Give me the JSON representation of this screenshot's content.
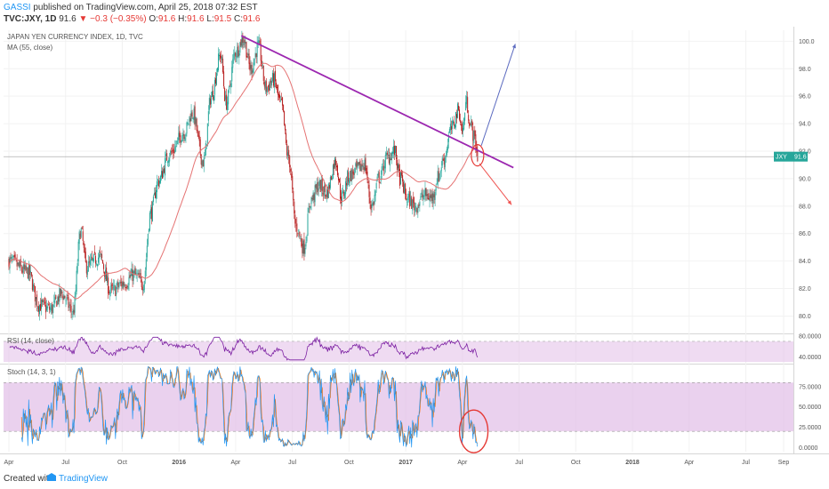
{
  "header": {
    "author": "GASSI",
    "published": "published on TradingView.com, April 25, 2018 07:32 EST",
    "symbol": "TVC:JXY, 1D",
    "last": "91.6",
    "change": "▼ −0.3 (−0.35%)",
    "ohlc": [
      {
        "k": "O:",
        "v": "91.6"
      },
      {
        "k": "H:",
        "v": "91.6"
      },
      {
        "k": "L:",
        "v": "91.5"
      },
      {
        "k": "C:",
        "v": "91.6"
      }
    ]
  },
  "footer": {
    "created": "Created with",
    "brand": "TradingView"
  },
  "colors": {
    "up": "#26a69a",
    "down": "#b71c1c",
    "ma": "#e57373",
    "trendline": "#9c27b0",
    "pointer_up": "#5c6bc0",
    "pointer_down": "#ef5350",
    "highlight": "#e53935",
    "rsi": "#7b1fa2",
    "stoch_k": "#2196f3",
    "stoch_d": "#ef6c00",
    "band": "#e1bee7"
  },
  "chart_data": [
    {
      "type": "candlestick",
      "title": "JAPAN YEN CURRENCY INDEX, 1D, TVC",
      "overlay": "MA (55, close)",
      "price_badge": {
        "label": "JXY",
        "value": "91.6"
      },
      "ylim": [
        78.8,
        100.8
      ],
      "yticks": [
        "100.0",
        "98.0",
        "96.0",
        "94.0",
        "92.0",
        "90.0",
        "88.0",
        "86.0",
        "84.0",
        "82.0",
        "80.0"
      ],
      "x_range_months": [
        0,
        30
      ],
      "last_bar_month": 24.8,
      "keypoints": [
        {
          "t": 0,
          "v": 84.0
        },
        {
          "t": 1,
          "v": 83.2
        },
        {
          "t": 1.6,
          "v": 80.8
        },
        {
          "t": 2.2,
          "v": 80.5
        },
        {
          "t": 2.8,
          "v": 81.6
        },
        {
          "t": 3.4,
          "v": 80.3
        },
        {
          "t": 3.8,
          "v": 86.2
        },
        {
          "t": 4.1,
          "v": 83.6
        },
        {
          "t": 4.8,
          "v": 84.3
        },
        {
          "t": 5.4,
          "v": 81.8
        },
        {
          "t": 6.1,
          "v": 82.4
        },
        {
          "t": 6.6,
          "v": 83.0
        },
        {
          "t": 7.1,
          "v": 82.4
        },
        {
          "t": 7.5,
          "v": 87.5
        },
        {
          "t": 7.9,
          "v": 89.8
        },
        {
          "t": 8.5,
          "v": 91.8
        },
        {
          "t": 9.3,
          "v": 93.4
        },
        {
          "t": 9.7,
          "v": 94.8
        },
        {
          "t": 10.3,
          "v": 91.2
        },
        {
          "t": 10.7,
          "v": 96.0
        },
        {
          "t": 11.2,
          "v": 99.0
        },
        {
          "t": 11.5,
          "v": 95.5
        },
        {
          "t": 12.0,
          "v": 99.2
        },
        {
          "t": 12.4,
          "v": 100.2
        },
        {
          "t": 12.8,
          "v": 98.0
        },
        {
          "t": 13.2,
          "v": 99.6
        },
        {
          "t": 13.6,
          "v": 96.6
        },
        {
          "t": 14.0,
          "v": 97.2
        },
        {
          "t": 14.4,
          "v": 95.4
        },
        {
          "t": 14.8,
          "v": 91.5
        },
        {
          "t": 15.2,
          "v": 86.5
        },
        {
          "t": 15.6,
          "v": 85.0
        },
        {
          "t": 16.0,
          "v": 88.5
        },
        {
          "t": 16.4,
          "v": 89.5
        },
        {
          "t": 16.8,
          "v": 89.0
        },
        {
          "t": 17.3,
          "v": 91.3
        },
        {
          "t": 17.6,
          "v": 88.6
        },
        {
          "t": 18.0,
          "v": 90.2
        },
        {
          "t": 18.4,
          "v": 90.6
        },
        {
          "t": 18.8,
          "v": 91.1
        },
        {
          "t": 19.2,
          "v": 88.0
        },
        {
          "t": 19.6,
          "v": 90.1
        },
        {
          "t": 20.0,
          "v": 91.5
        },
        {
          "t": 20.4,
          "v": 92.0
        },
        {
          "t": 20.7,
          "v": 90.0
        },
        {
          "t": 21.1,
          "v": 88.5
        },
        {
          "t": 21.5,
          "v": 88.0
        },
        {
          "t": 22.0,
          "v": 88.8
        },
        {
          "t": 22.4,
          "v": 88.6
        },
        {
          "t": 22.7,
          "v": 90.1
        },
        {
          "t": 23.0,
          "v": 91.4
        },
        {
          "t": 23.4,
          "v": 93.6
        },
        {
          "t": 23.8,
          "v": 95.0
        },
        {
          "t": 24.0,
          "v": 93.4
        },
        {
          "t": 24.2,
          "v": 95.6
        },
        {
          "t": 24.45,
          "v": 93.8
        },
        {
          "t": 24.65,
          "v": 92.9
        },
        {
          "t": 24.8,
          "v": 91.6
        }
      ],
      "trendline": [
        {
          "t": 12.3,
          "v": 100.4
        },
        {
          "t": 26.7,
          "v": 90.8
        }
      ],
      "projection_up": [
        {
          "t": 25.0,
          "v": 92.4
        },
        {
          "t": 26.8,
          "v": 99.8
        }
      ],
      "projection_down": [
        {
          "t": 24.9,
          "v": 91.1
        },
        {
          "t": 26.6,
          "v": 88.1
        }
      ],
      "highlight": {
        "t": 24.8,
        "v": 91.7
      }
    },
    {
      "type": "line",
      "title": "RSI (14, close)",
      "ylim": [
        32,
        82
      ],
      "yticks": [
        "80.0000",
        "40.0000"
      ],
      "band": [
        30,
        70
      ]
    },
    {
      "type": "line",
      "title": "Stoch (14, 3, 1)",
      "ylim": [
        -5,
        100
      ],
      "yticks": [
        "75.0000",
        "50.0000",
        "25.0000",
        "0.0000"
      ],
      "band": [
        20,
        80
      ],
      "series": [
        {
          "values_note": "K"
        },
        {
          "values_note": "D"
        }
      ],
      "highlight": {
        "t": 24.6,
        "v": 10
      }
    },
    {
      "type": "axis",
      "xticks": [
        {
          "label": "Apr",
          "t": 0
        },
        {
          "label": "Jul",
          "t": 3
        },
        {
          "label": "Oct",
          "t": 6
        },
        {
          "label": "2016",
          "t": 9,
          "bold": true
        },
        {
          "label": "Apr",
          "t": 12
        },
        {
          "label": "Jul",
          "t": 15
        },
        {
          "label": "Oct",
          "t": 18
        },
        {
          "label": "2017",
          "t": 21,
          "bold": true
        },
        {
          "label": "Apr",
          "t": 24
        },
        {
          "label": "Jul",
          "t": 27
        },
        {
          "label": "Oct",
          "t": 30
        },
        {
          "label": "2018",
          "t": 33,
          "bold": true
        },
        {
          "label": "Apr",
          "t": 36
        },
        {
          "label": "Jul",
          "t": 39
        },
        {
          "label": "Sep",
          "t": 41
        }
      ]
    }
  ]
}
